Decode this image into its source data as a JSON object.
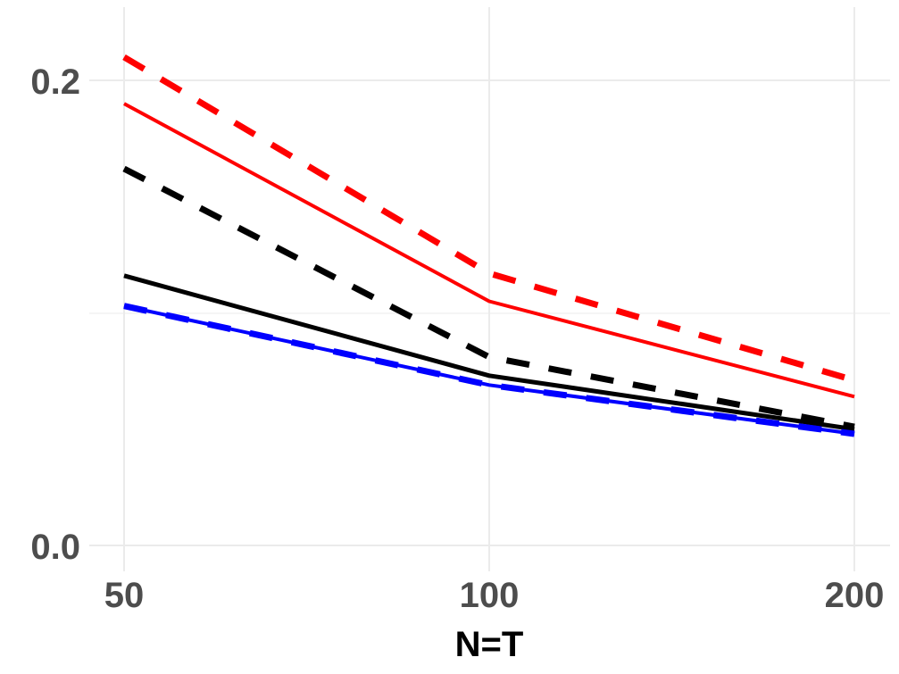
{
  "chart_data": {
    "type": "line",
    "title": "",
    "xlabel": "N=T",
    "ylabel": "",
    "x": [
      50,
      100,
      200
    ],
    "x_ticks": [
      "50",
      "100",
      "200"
    ],
    "y_ticks": [
      "0.0",
      "0.2"
    ],
    "ylim": [
      0.0,
      0.22
    ],
    "grid": true,
    "legend": "none",
    "series": [
      {
        "name": "red-dashed",
        "color": "#ff0000",
        "style": "dashed",
        "values": [
          0.21,
          0.117,
          0.071
        ]
      },
      {
        "name": "red-solid",
        "color": "#ff0000",
        "style": "solid",
        "values": [
          0.19,
          0.105,
          0.064
        ]
      },
      {
        "name": "black-dashed",
        "color": "#000000",
        "style": "dashed",
        "values": [
          0.162,
          0.081,
          0.051
        ]
      },
      {
        "name": "black-solid",
        "color": "#000000",
        "style": "solid",
        "values": [
          0.116,
          0.073,
          0.05
        ]
      },
      {
        "name": "blue-dashed",
        "color": "#0000ff",
        "style": "dashed",
        "values": [
          0.103,
          0.069,
          0.048
        ]
      },
      {
        "name": "blue-solid",
        "color": "#0000ff",
        "style": "solid",
        "values": [
          0.103,
          0.069,
          0.048
        ]
      }
    ]
  },
  "labels": {
    "x_axis_title": "N=T",
    "x_tick_50": "50",
    "x_tick_100": "100",
    "x_tick_200": "200",
    "y_tick_00": "0.0",
    "y_tick_02": "0.2"
  }
}
